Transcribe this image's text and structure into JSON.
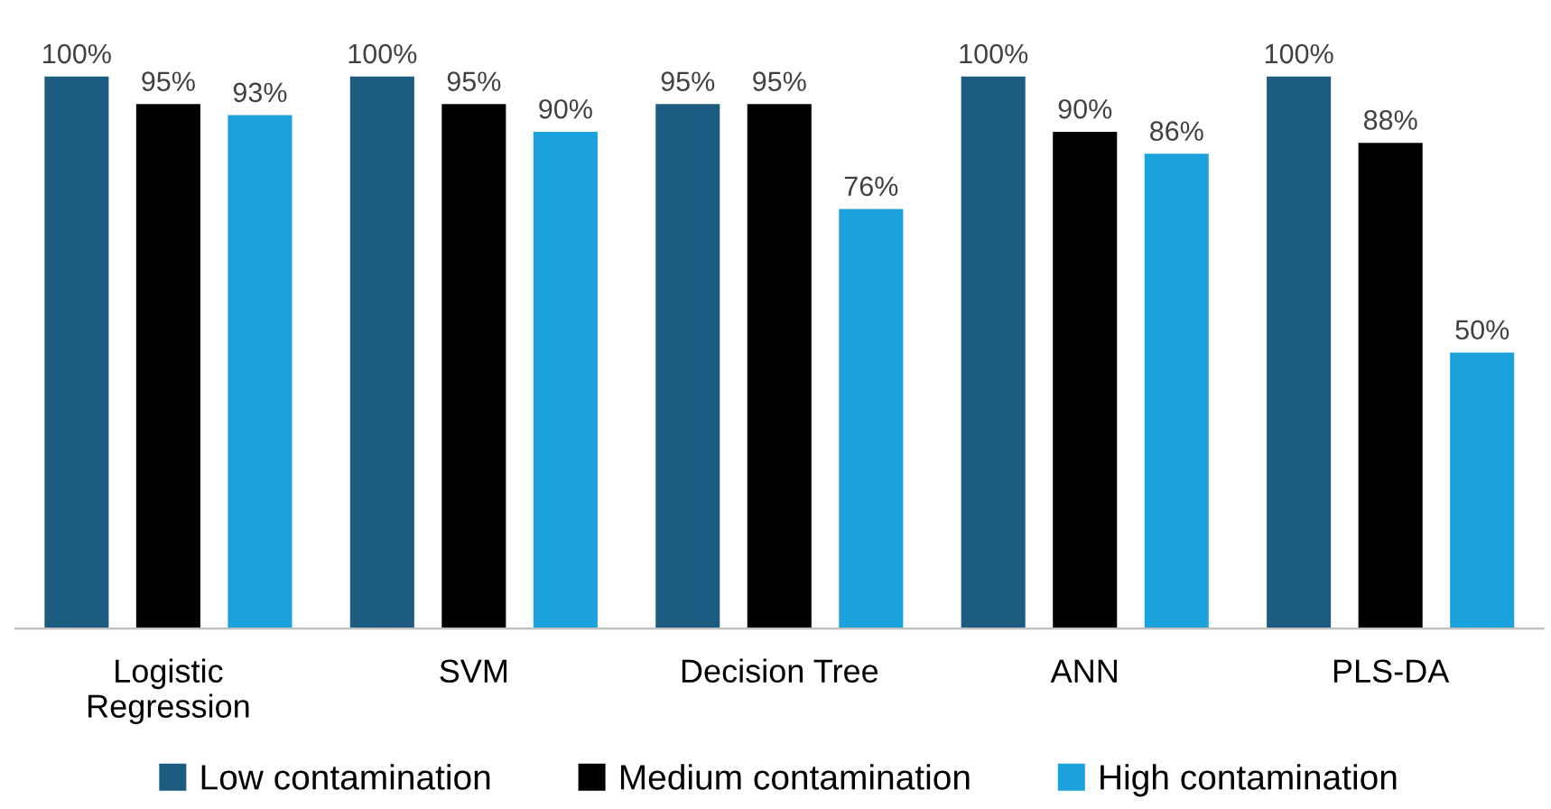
{
  "chart_data": {
    "type": "bar",
    "categories": [
      "Logistic\nRegression",
      "SVM",
      "Decision Tree",
      "ANN",
      "PLS-DA"
    ],
    "series": [
      {
        "name": "Low contamination",
        "color": "#1b5c80",
        "values": [
          100,
          100,
          95,
          100,
          100
        ],
        "value_labels": [
          "100%",
          "100%",
          "95%",
          "100%",
          "100%"
        ]
      },
      {
        "name": "Medium contamination",
        "color": "#000000",
        "values": [
          95,
          95,
          95,
          90,
          88
        ],
        "value_labels": [
          "95%",
          "95%",
          "95%",
          "90%",
          "88%"
        ]
      },
      {
        "name": "High contamination",
        "color": "#1ba1dc",
        "values": [
          93,
          90,
          76,
          86,
          50
        ],
        "value_labels": [
          "93%",
          "90%",
          "76%",
          "86%",
          "50%"
        ]
      }
    ],
    "tick_labels": "x",
    "grid": false,
    "legend": "bottom"
  }
}
